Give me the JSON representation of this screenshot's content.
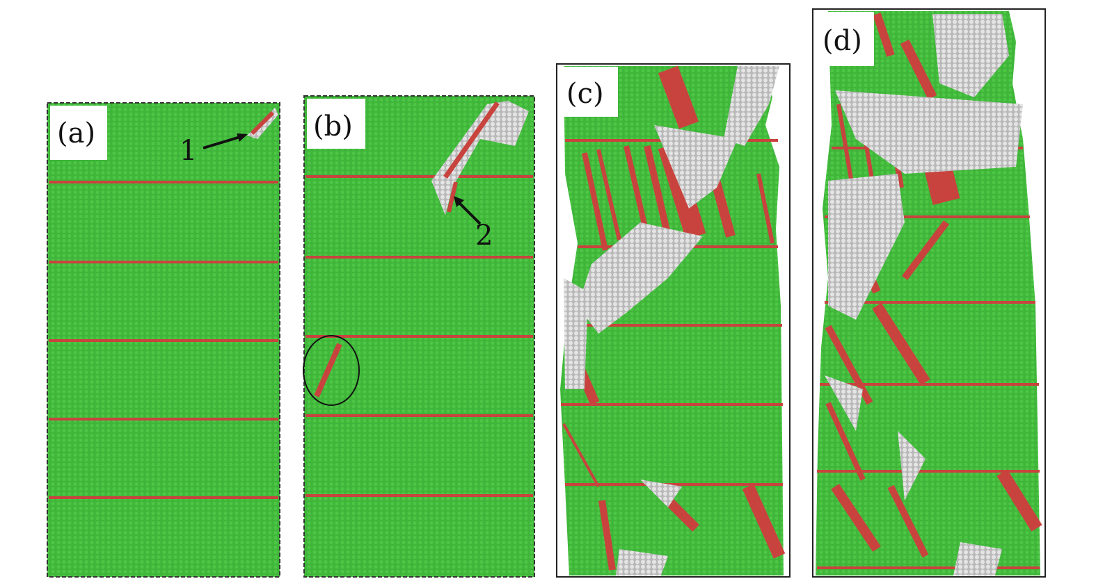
{
  "panels": [
    {
      "label": "(a)"
    },
    {
      "label": "(b)"
    },
    {
      "label": "(c)"
    },
    {
      "label": "(d)"
    }
  ],
  "annotations": [
    "1",
    "2"
  ]
}
